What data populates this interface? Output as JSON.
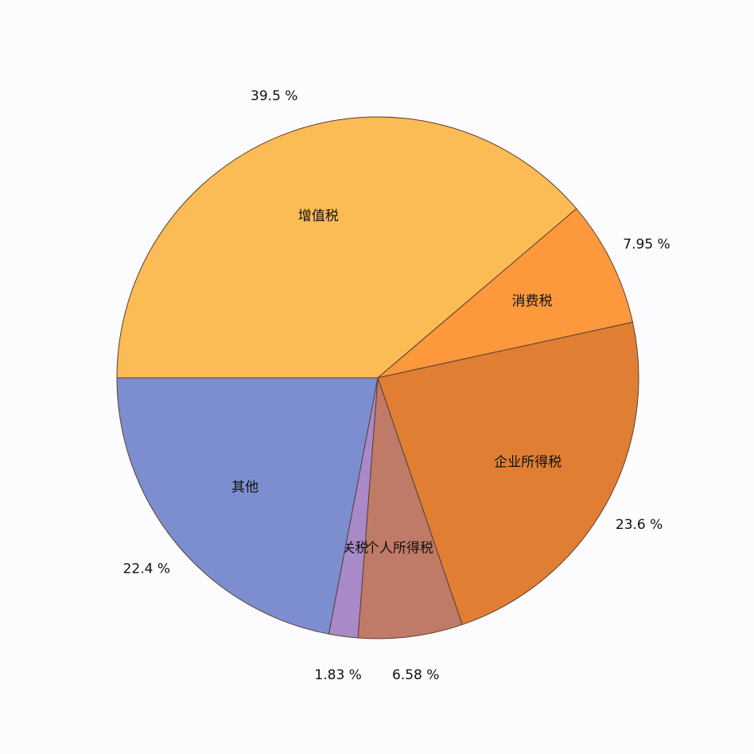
{
  "chart_data": {
    "type": "pie",
    "categories": [
      "增值税",
      "消费税",
      "企业所得税",
      "个人所得税",
      "关税",
      "其他"
    ],
    "values": [
      39.5,
      7.95,
      23.6,
      6.58,
      1.83,
      22.4
    ],
    "value_labels": [
      "39.5 %",
      "7.95 %",
      "23.6 %",
      "6.58 %",
      "1.83 %",
      "22.4 %"
    ],
    "colors": [
      "#fbbb55",
      "#fd983d",
      "#e07f33",
      "#c07a68",
      "#a88ac8",
      "#7d8ed0"
    ]
  }
}
